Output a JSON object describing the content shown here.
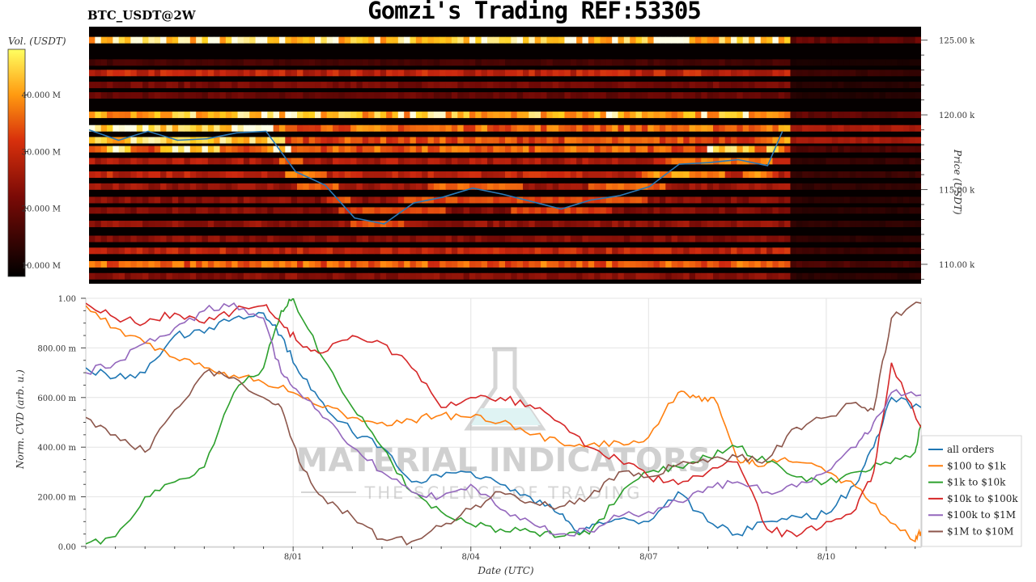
{
  "header": {
    "pair": "BTC_USDT@2W",
    "title": "Gomzi's Trading REF:53305"
  },
  "watermark": {
    "line1": "MATERIAL INDICATORS",
    "line2": "THE SCIENCE OF TRADING",
    "icon": "flask-icon"
  },
  "colors": {
    "heatmap_low": "#000000",
    "heatmap_mid": "#c02010",
    "heatmap_high": "#ffff40",
    "price_line": "#2a7ab8"
  },
  "chart_data": [
    {
      "type": "heatmap",
      "name": "orderbook-liquidity-heatmap",
      "colorbar": {
        "title": "Vol. (USDT)",
        "ticks": [
          "10.000 M",
          "20.000 M",
          "30.000 M",
          "40.000 M"
        ],
        "tick_values": [
          10,
          20,
          30,
          40
        ],
        "range": [
          8,
          48
        ]
      },
      "y_axis": {
        "title": "Price (USDT)",
        "ticks": [
          "110.00 k",
          "115.00 k",
          "120.00 k",
          "125.00 k"
        ],
        "tick_values": [
          110000,
          115000,
          120000,
          125000
        ],
        "range": [
          108700,
          125900
        ]
      },
      "liquidity_bands": [
        {
          "price": 125000,
          "intensity": 0.98
        },
        {
          "price": 123500,
          "intensity": 0.2
        },
        {
          "price": 122800,
          "intensity": 0.55
        },
        {
          "price": 122000,
          "intensity": 0.35
        },
        {
          "price": 121300,
          "intensity": 0.3
        },
        {
          "price": 120000,
          "intensity": 0.92
        },
        {
          "price": 119100,
          "intensity": 0.75
        },
        {
          "price": 118300,
          "intensity": 0.68
        },
        {
          "price": 117700,
          "intensity": 0.72
        },
        {
          "price": 116900,
          "intensity": 0.5
        },
        {
          "price": 116000,
          "intensity": 0.55
        },
        {
          "price": 115200,
          "intensity": 0.45
        },
        {
          "price": 114300,
          "intensity": 0.4
        },
        {
          "price": 113600,
          "intensity": 0.38
        },
        {
          "price": 112700,
          "intensity": 0.42
        },
        {
          "price": 111700,
          "intensity": 0.4
        },
        {
          "price": 110900,
          "intensity": 0.55
        },
        {
          "price": 110000,
          "intensity": 0.72
        },
        {
          "price": 109200,
          "intensity": 0.4
        }
      ],
      "price_series": {
        "name": "BTC price",
        "days": [
          0,
          0.5,
          1.0,
          1.5,
          2.0,
          2.5,
          3.0,
          3.5,
          4.0,
          4.5,
          5.0,
          5.5,
          6.0,
          6.5,
          7.0,
          7.5,
          8.0,
          8.5,
          9.0,
          9.5,
          10.0,
          10.5,
          11.0,
          11.5,
          11.75
        ],
        "values": [
          119000,
          118300,
          118900,
          118300,
          118400,
          118800,
          118900,
          116200,
          115300,
          113100,
          112700,
          114100,
          114500,
          115100,
          114700,
          114200,
          113700,
          114300,
          114600,
          115200,
          116700,
          116800,
          117000,
          116600,
          118900
        ]
      }
    },
    {
      "type": "line",
      "name": "normalized-cvd",
      "ylabel": "Norm. CVD (arb. u.)",
      "xlabel": "Date (UTC)",
      "ylim": [
        0,
        1
      ],
      "yticks": [
        "0.00",
        "200.00 m",
        "400.00 m",
        "600.00 m",
        "800.00 m",
        "1.00"
      ],
      "ytick_values": [
        0,
        0.2,
        0.4,
        0.6,
        0.8,
        1.0
      ],
      "xticks": [
        "8/01",
        "8/04",
        "8/07",
        "8/10"
      ],
      "xtick_days": [
        3.5,
        6.5,
        9.5,
        12.5
      ],
      "x_range_days": [
        0,
        14.1
      ],
      "legend_position": "right",
      "series": [
        {
          "name": "all orders",
          "color": "#1f77b4",
          "days": [
            0,
            0.5,
            1,
            1.5,
            2,
            2.5,
            3,
            3.3,
            3.6,
            4,
            4.5,
            5,
            5.5,
            6,
            6.5,
            7,
            7.5,
            8,
            8.3,
            8.6,
            9,
            9.5,
            10,
            10.5,
            11,
            11.5,
            12,
            12.5,
            13,
            13.3,
            13.6,
            14.1
          ],
          "values": [
            0.72,
            0.68,
            0.7,
            0.85,
            0.86,
            0.92,
            0.94,
            0.85,
            0.7,
            0.58,
            0.46,
            0.4,
            0.26,
            0.28,
            0.3,
            0.25,
            0.2,
            0.13,
            0.06,
            0.09,
            0.11,
            0.1,
            0.22,
            0.1,
            0.05,
            0.1,
            0.12,
            0.13,
            0.25,
            0.4,
            0.6,
            0.56
          ]
        },
        {
          "name": "$100 to $1k",
          "color": "#ff7f0e",
          "days": [
            0,
            0.5,
            1,
            1.5,
            2,
            2.5,
            3,
            3.5,
            4,
            4.5,
            5,
            5.5,
            6,
            6.5,
            7,
            7.5,
            8,
            8.5,
            9,
            9.5,
            10,
            10.3,
            10.6,
            11,
            11.3,
            11.6,
            12,
            12.5,
            13,
            13.5,
            14,
            14.1
          ],
          "values": [
            0.97,
            0.88,
            0.82,
            0.76,
            0.72,
            0.69,
            0.66,
            0.62,
            0.56,
            0.52,
            0.5,
            0.51,
            0.53,
            0.52,
            0.5,
            0.45,
            0.42,
            0.41,
            0.42,
            0.44,
            0.62,
            0.6,
            0.6,
            0.35,
            0.33,
            0.35,
            0.34,
            0.3,
            0.24,
            0.12,
            0.02,
            0.06
          ]
        },
        {
          "name": "$1k to $10k",
          "color": "#2ca02c",
          "days": [
            0,
            0.5,
            1,
            1.5,
            2,
            2.5,
            3,
            3.3,
            3.5,
            4,
            4.5,
            5,
            5.5,
            6,
            6.5,
            7,
            7.5,
            8,
            8.5,
            9,
            9.5,
            10,
            10.5,
            11,
            11.5,
            12,
            12.5,
            13,
            13.5,
            14,
            14.1
          ],
          "values": [
            0.01,
            0.04,
            0.2,
            0.26,
            0.32,
            0.62,
            0.72,
            0.95,
            1.0,
            0.76,
            0.56,
            0.4,
            0.22,
            0.14,
            0.09,
            0.07,
            0.06,
            0.04,
            0.05,
            0.2,
            0.3,
            0.32,
            0.36,
            0.4,
            0.34,
            0.28,
            0.26,
            0.3,
            0.34,
            0.38,
            0.49
          ]
        },
        {
          "name": "$10k to $100k",
          "color": "#d62728",
          "days": [
            0,
            0.5,
            1,
            1.5,
            2,
            2.5,
            3,
            3.3,
            3.6,
            4,
            4.5,
            5,
            5.5,
            6,
            6.5,
            7,
            7.5,
            8,
            8.5,
            9,
            9.5,
            10,
            10.5,
            11,
            11.5,
            12,
            12.5,
            13,
            13.3,
            13.6,
            14.1
          ],
          "values": [
            0.98,
            0.92,
            0.9,
            0.94,
            0.9,
            0.95,
            0.97,
            0.9,
            0.82,
            0.78,
            0.85,
            0.82,
            0.72,
            0.56,
            0.6,
            0.6,
            0.57,
            0.5,
            0.4,
            0.35,
            0.28,
            0.25,
            0.3,
            0.34,
            0.07,
            0.04,
            0.1,
            0.15,
            0.3,
            0.74,
            0.48
          ]
        },
        {
          "name": "$100k to $1M",
          "color": "#9467bd",
          "days": [
            0,
            0.5,
            1,
            1.5,
            2,
            2.5,
            3,
            3.3,
            3.6,
            4,
            4.5,
            5,
            5.5,
            6,
            6.5,
            7,
            7.5,
            8,
            8.5,
            9,
            9.5,
            10,
            10.5,
            11,
            11.5,
            12,
            12.5,
            13,
            13.3,
            13.6,
            14.1
          ],
          "values": [
            0.7,
            0.74,
            0.82,
            0.88,
            0.95,
            0.98,
            0.92,
            0.7,
            0.62,
            0.52,
            0.4,
            0.3,
            0.22,
            0.2,
            0.25,
            0.15,
            0.1,
            0.05,
            0.06,
            0.12,
            0.14,
            0.18,
            0.24,
            0.26,
            0.22,
            0.24,
            0.3,
            0.4,
            0.5,
            0.62,
            0.61
          ]
        },
        {
          "name": "$1M to $10M",
          "color": "#8c564b",
          "days": [
            0,
            0.5,
            1,
            1.5,
            2,
            2.5,
            3,
            3.3,
            3.6,
            4,
            4.5,
            5,
            5.5,
            6,
            6.5,
            7,
            7.5,
            8,
            8.5,
            9,
            9.5,
            10,
            10.5,
            11,
            11.5,
            12,
            12.5,
            13,
            13.3,
            13.6,
            14.1
          ],
          "values": [
            0.52,
            0.45,
            0.38,
            0.55,
            0.7,
            0.68,
            0.6,
            0.56,
            0.34,
            0.2,
            0.12,
            0.03,
            0.02,
            0.08,
            0.15,
            0.22,
            0.18,
            0.16,
            0.2,
            0.3,
            0.28,
            0.33,
            0.34,
            0.36,
            0.35,
            0.48,
            0.52,
            0.58,
            0.55,
            0.92,
            0.98
          ]
        }
      ]
    }
  ]
}
